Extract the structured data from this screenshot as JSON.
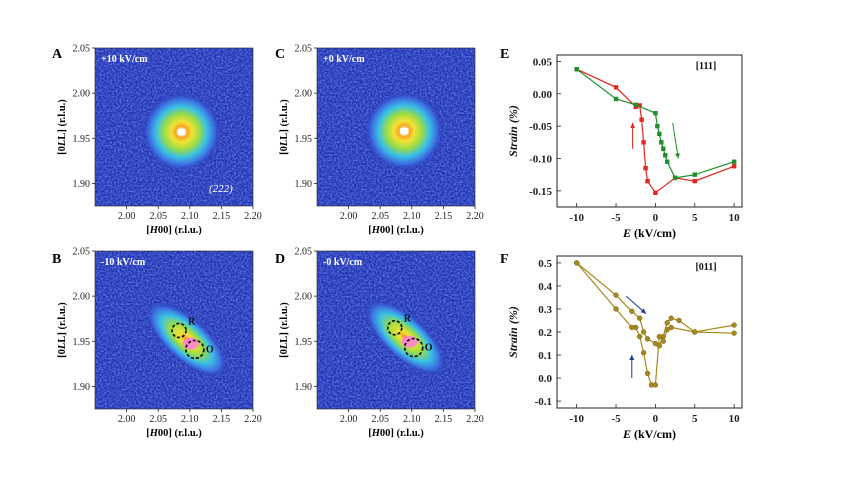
{
  "colors": {
    "map_background": "#2332b5",
    "map_mid_blue": "#3d6ee0",
    "map_cyan": "#39c0e6",
    "map_green": "#9bdc45",
    "map_yellow": "#f2e334",
    "map_orange": "#f08a1f",
    "map_red": "#d43a2e",
    "map_peak": "#ffffff",
    "map_peak_magenta": "#ff7ee0",
    "series_111": "#e3261f",
    "series_111_reverse": "#1f8f2a",
    "series_011": "#a88a1c",
    "annotation_ring": "#000000"
  },
  "maps": {
    "A": {
      "letter": "A",
      "label": "+10 kV/cm",
      "index": "(222)",
      "markers": []
    },
    "B": {
      "letter": "B",
      "label": "-10 kV/cm",
      "index": "",
      "markers": [
        {
          "text": "R",
          "h": 2.083,
          "l": 1.962
        },
        {
          "text": "O",
          "h": 2.108,
          "l": 1.941
        }
      ]
    },
    "C": {
      "letter": "C",
      "label": "+0 kV/cm",
      "index": "",
      "markers": []
    },
    "D": {
      "letter": "D",
      "label": "-0 kV/cm",
      "index": "",
      "markers": [
        {
          "text": "R",
          "h": 2.073,
          "l": 1.965
        },
        {
          "text": "O",
          "h": 2.103,
          "l": 1.943
        }
      ]
    },
    "axes": {
      "xlabel": "[H00] (r.l.u.)",
      "xlabel_italic": "H",
      "ylabel": "[0LL] (r.l.u.)",
      "ylabel_italic": "L",
      "xlim": [
        1.95,
        2.2
      ],
      "ylim": [
        1.875,
        2.05
      ],
      "xticks": [
        "2.00",
        "2.05",
        "2.10",
        "2.15",
        "2.20"
      ],
      "xtick_values": [
        2.0,
        2.05,
        2.1,
        2.15,
        2.2
      ],
      "yticks": [
        "1.90",
        "1.95",
        "2.00",
        "2.05"
      ],
      "ytick_values": [
        1.9,
        1.95,
        2.0,
        2.05
      ]
    }
  },
  "chart_data": [
    {
      "panel": "E",
      "type": "line",
      "annotation": "[111]",
      "xlabel": "E (kV/cm)",
      "xlabel_italic": "E",
      "ylabel": "Strain (%)",
      "xlim": [
        -12.5,
        11
      ],
      "ylim": [
        -0.175,
        0.06
      ],
      "xticks": [
        "-10",
        "-5",
        "0",
        "5",
        "10"
      ],
      "xtick_values": [
        -10,
        -5,
        0,
        5,
        10
      ],
      "yticks": [
        "0.05",
        "0.00",
        "-0.05",
        "-0.10",
        "-0.15"
      ],
      "ytick_values": [
        0.05,
        0.0,
        -0.05,
        -0.1,
        -0.15
      ],
      "series": [
        {
          "color": "#e3261f",
          "x": [
            -10,
            -5,
            -2.5,
            -2,
            -1.75,
            -1.5,
            -1.25,
            -1,
            0,
            2.5,
            5,
            10
          ],
          "y": [
            0.038,
            0.01,
            -0.02,
            -0.018,
            -0.04,
            -0.075,
            -0.115,
            -0.135,
            -0.153,
            -0.13,
            -0.135,
            -0.112
          ]
        },
        {
          "color": "#1f8f2a",
          "x": [
            10,
            5,
            2.5,
            1.5,
            1.25,
            1,
            0.75,
            0.5,
            0.25,
            0,
            -2.5,
            -5,
            -10
          ],
          "y": [
            -0.105,
            -0.125,
            -0.13,
            -0.105,
            -0.095,
            -0.085,
            -0.075,
            -0.062,
            -0.05,
            -0.03,
            -0.017,
            -0.008,
            0.038
          ]
        }
      ],
      "arrows": [
        {
          "color": "#e3261f",
          "from": [
            -2.9,
            -0.085
          ],
          "to": [
            -2.9,
            -0.045
          ]
        },
        {
          "color": "#1f8f2a",
          "from": [
            2.2,
            -0.045
          ],
          "to": [
            2.9,
            -0.1
          ]
        }
      ]
    },
    {
      "panel": "F",
      "type": "line",
      "annotation": "[011]",
      "xlabel": "E (kV/cm)",
      "xlabel_italic": "E",
      "ylabel": "Strain (%)",
      "xlim": [
        -12.5,
        11
      ],
      "ylim": [
        -0.13,
        0.53
      ],
      "xticks": [
        "-10",
        "-5",
        "0",
        "5",
        "10"
      ],
      "xtick_values": [
        -10,
        -5,
        0,
        5,
        10
      ],
      "yticks": [
        "0.5",
        "0.4",
        "0.3",
        "0.2",
        "0.1",
        "0.0",
        "-0.1"
      ],
      "ytick_values": [
        0.5,
        0.4,
        0.3,
        0.2,
        0.1,
        0.0,
        -0.1
      ],
      "series": [
        {
          "color": "#a88a1c",
          "x": [
            -10,
            -5,
            -3,
            -2,
            -1.5,
            -1,
            0,
            0.5,
            1,
            1.5,
            2,
            3,
            5,
            10
          ],
          "y": [
            0.5,
            0.36,
            0.29,
            0.26,
            0.2,
            0.17,
            0.15,
            0.14,
            0.18,
            0.24,
            0.26,
            0.25,
            0.2,
            0.23
          ]
        },
        {
          "color": "#a88a1c",
          "x": [
            10,
            5,
            2,
            1.5,
            1,
            0.5,
            0,
            -0.5,
            -1,
            -1.5,
            -2,
            -2.5,
            -3,
            -5,
            -10
          ],
          "y": [
            0.195,
            0.2,
            0.22,
            0.21,
            0.16,
            0.18,
            -0.03,
            -0.03,
            0.02,
            0.11,
            0.18,
            0.22,
            0.22,
            0.3,
            0.5
          ]
        }
      ],
      "arrows": [
        {
          "color": "#1f3a8f",
          "from": [
            -3.7,
            0.355
          ],
          "to": [
            -1.2,
            0.28
          ]
        },
        {
          "color": "#1f3a8f",
          "from": [
            -3.0,
            0.0
          ],
          "to": [
            -3.0,
            0.1
          ]
        }
      ]
    }
  ],
  "panels": {
    "E": "E",
    "F": "F"
  }
}
